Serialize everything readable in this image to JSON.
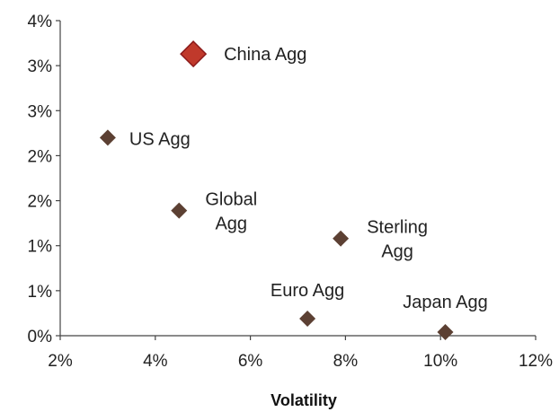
{
  "chart_data": {
    "type": "scatter",
    "title": "",
    "xlabel": "Volatility",
    "ylabel": "",
    "xlim": [
      0.02,
      0.12
    ],
    "ylim": [
      0.0,
      0.035
    ],
    "x_ticks": [
      0.02,
      0.04,
      0.06,
      0.08,
      0.1,
      0.12
    ],
    "x_tick_labels": [
      "2%",
      "4%",
      "6%",
      "8%",
      "10%",
      "12%"
    ],
    "y_ticks": [
      0.0,
      0.005,
      0.01,
      0.015,
      0.02,
      0.025,
      0.03,
      0.035
    ],
    "y_tick_labels": [
      "0%",
      "1%",
      "1%",
      "2%",
      "2%",
      "3%",
      "3%",
      "4%"
    ],
    "grid": false,
    "legend": "none",
    "marker": "diamond",
    "points": [
      {
        "label": "China Agg",
        "x": 0.048,
        "y": 0.0313,
        "color": "#c0392b",
        "highlight": true
      },
      {
        "label": "US Agg",
        "x": 0.03,
        "y": 0.022,
        "color": "#5c4033",
        "highlight": false
      },
      {
        "label": "Global Agg",
        "x": 0.045,
        "y": 0.0139,
        "color": "#5c4033",
        "highlight": false
      },
      {
        "label": "Sterling Agg",
        "x": 0.079,
        "y": 0.0108,
        "color": "#5c4033",
        "highlight": false
      },
      {
        "label": "Euro Agg",
        "x": 0.072,
        "y": 0.0019,
        "color": "#5c4033",
        "highlight": false
      },
      {
        "label": "Japan Agg",
        "x": 0.101,
        "y": 0.0004,
        "color": "#5c4033",
        "highlight": false
      }
    ]
  }
}
